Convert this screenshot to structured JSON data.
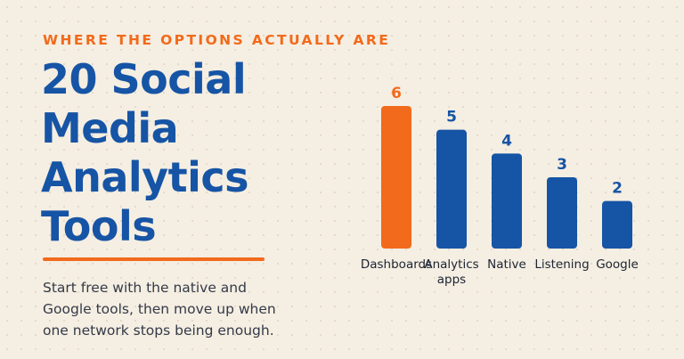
{
  "header": {
    "eyebrow": "WHERE THE OPTIONS ACTUALLY ARE",
    "title_lines": [
      "20 Social",
      "Media",
      "Analytics",
      "Tools"
    ]
  },
  "body": {
    "subtitle_lines": [
      "Start free with the native and",
      "Google tools, then move up when",
      "one network stops being enough."
    ]
  },
  "colors": {
    "background": "#f5eee2",
    "accent": "#f26a1b",
    "primary": "#1654a5",
    "text": "#333a48"
  },
  "chart_data": {
    "type": "bar",
    "categories": [
      "Dashboards",
      "Analytics apps",
      "Native",
      "Listening",
      "Google"
    ],
    "values": [
      6,
      5,
      4,
      3,
      2
    ],
    "highlight_index": 0,
    "highlight_color": "#f26a1b",
    "bar_color": "#1654a5",
    "ylim": [
      0,
      6
    ],
    "grid": false,
    "title": "",
    "xlabel": "",
    "ylabel": ""
  }
}
